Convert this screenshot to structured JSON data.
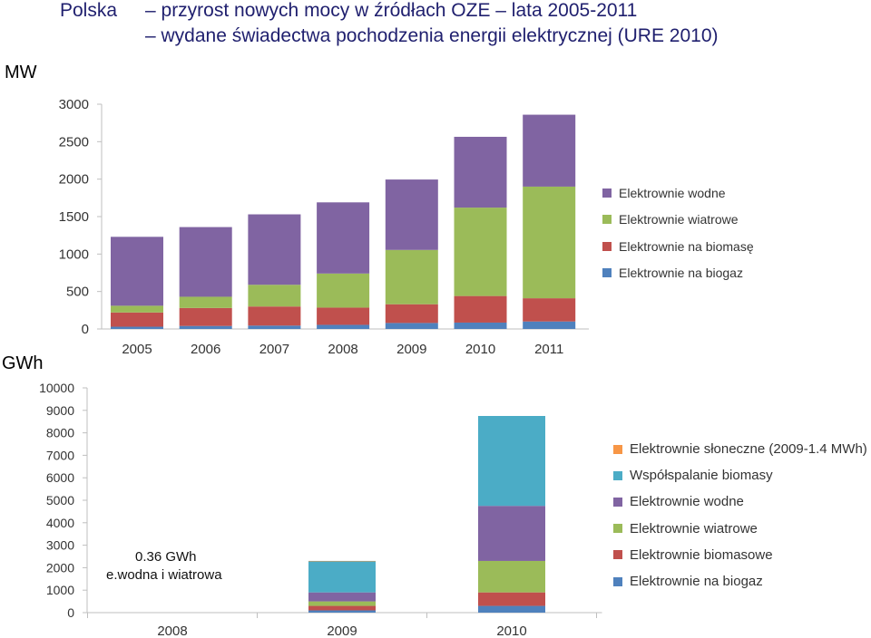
{
  "header": {
    "country": "Polska",
    "title1": "– przyrost nowych mocy w źródłach OZE – lata 2005-2011",
    "title2": "– wydane świadectwa pochodzenia energii elektrycznej  (URE 2010)"
  },
  "chart_data": [
    {
      "type": "bar",
      "stacked": true,
      "unit_label": "MW",
      "categories": [
        "2005",
        "2006",
        "2007",
        "2008",
        "2009",
        "2010",
        "2011"
      ],
      "yticks": [
        0,
        500,
        1000,
        1500,
        2000,
        2500,
        3000
      ],
      "ylim": [
        0,
        3000
      ],
      "legend_position": "right",
      "series": [
        {
          "name": "Elektrownie na biogaz",
          "color": "#4f81bd",
          "values": [
            30,
            40,
            45,
            55,
            80,
            85,
            100
          ]
        },
        {
          "name": "Elektrownie na biomasę",
          "color": "#c0504d",
          "values": [
            190,
            240,
            255,
            230,
            250,
            355,
            310
          ]
        },
        {
          "name": "Elektrownie wiatrowe",
          "color": "#9bbb59",
          "values": [
            90,
            150,
            290,
            455,
            725,
            1180,
            1490
          ]
        },
        {
          "name": "Elektrownie wodne",
          "color": "#8064a2",
          "values": [
            920,
            930,
            940,
            950,
            940,
            945,
            960
          ]
        }
      ]
    },
    {
      "type": "bar",
      "stacked": true,
      "unit_label": "GWh",
      "categories": [
        "2008",
        "2009",
        "2010"
      ],
      "yticks": [
        0,
        1000,
        2000,
        3000,
        4000,
        5000,
        6000,
        7000,
        8000,
        9000,
        10000
      ],
      "ylim": [
        0,
        10000
      ],
      "legend_position": "right",
      "annotation_value": "0.36 GWh",
      "annotation_text": "e.wodna i wiatrowa",
      "series": [
        {
          "name": "Elektrownie na biogaz",
          "color": "#4f81bd",
          "values": [
            0,
            100,
            300
          ]
        },
        {
          "name": "Elektrownie biomasowe",
          "color": "#c0504d",
          "values": [
            0,
            200,
            600
          ]
        },
        {
          "name": "Elektrownie wiatrowe",
          "color": "#9bbb59",
          "values": [
            0,
            200,
            1400
          ]
        },
        {
          "name": "Elektrownie wodne",
          "color": "#8064a2",
          "values": [
            0,
            400,
            2450
          ]
        },
        {
          "name": "Współspalanie biomasy",
          "color": "#4bacc6",
          "values": [
            0,
            1400,
            4000
          ]
        },
        {
          "name": "Elektrownie słoneczne (2009-1.4 MWh)",
          "color": "#f79646",
          "values": [
            0,
            0.0014,
            0
          ]
        }
      ]
    }
  ]
}
